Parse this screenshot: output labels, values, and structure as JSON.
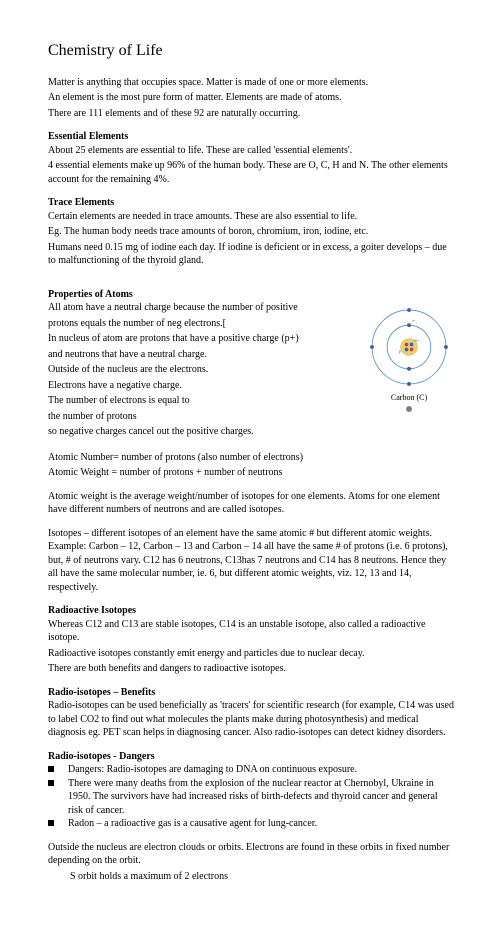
{
  "title": "Chemistry of Life",
  "intro": {
    "l1": "Matter is anything that occupies space. Matter is made of one or more elements.",
    "l2": "An element is the most pure form of matter. Elements are made of atoms.",
    "l3": "There are 111 elements and of these 92 are naturally occurring."
  },
  "essential": {
    "heading": "Essential Elements",
    "l1": "About 25 elements are essential to life. These are called 'essential elements'.",
    "l2": "4 essential elements make up 96% of the human body. These are O, C, H and N. The other elements account for the remaining 4%."
  },
  "trace": {
    "heading": "Trace Elements",
    "l1": "Certain elements are needed in trace amounts. These are also essential to life.",
    "l2": "Eg. The human body needs trace amounts of boron, chromium, iron, iodine, etc.",
    "l3": "Humans need 0.15 mg of iodine each day. If iodine is deficient or in excess, a goiter develops – due to malfunctioning of the thyroid gland."
  },
  "atoms": {
    "heading": "Properties of Atoms",
    "l1": "All atom have a neutral charge because the number of positive",
    "l2": "protons equals the number of neg electrons.[",
    "l3": "In nucleus of atom are protons that have a positive charge (p+)",
    "l4": "and neutrons that have a neutral charge.",
    "l5": "Outside of the nucleus are the electrons.",
    "l6": "Electrons have a negative charge.",
    "l7": "The number of electrons is equal to",
    "l8": "the number of protons",
    "l9": "so negative charges cancel out the positive charges.",
    "num_weight_l1": "Atomic Number= number of protons (also number of electrons)",
    "num_weight_l2": "Atomic Weight = number of protons + number of neutrons",
    "iso_intro": "Atomic weight is the average weight/number of isotopes for one elements. Atoms for one element have different numbers of neutrons and are called isotopes.",
    "iso_para": "Isotopes – different isotopes of an element have the same atomic # but different atomic weights. Example: Carbon – 12, Carbon – 13 and Carbon – 14 all have the same # of protons (i.e. 6 protons), but, # of neutrons vary. C12 has 6 neutrons, C13has 7 neutrons and C14 has 8 neutrons. Hence they all have the same molecular number, ie. 6, but different atomic weights, viz. 12, 13 and 14, respectively.",
    "figure_caption": "Carbon (C)"
  },
  "radioactive": {
    "heading": "Radioactive Isotopes",
    "l1": "Whereas C12 and C13 are stable isotopes, C14 is an unstable isotope, also called a radioactive isotope.",
    "l2": "Radioactive isotopes constantly emit energy and particles due to nuclear decay.",
    "l3": "There are both benefits and dangers to radioactive isotopes."
  },
  "benefits": {
    "heading": "Radio-isotopes – Benefits",
    "p": "Radio-isotopes can be used beneficially as 'tracers' for scientific research (for example, C14 was used to label CO2 to find out what molecules the plants make during photosynthesis) and medical diagnosis eg. PET scan helps in diagnosing cancer. Also radio-isotopes can detect kidney disorders."
  },
  "dangers": {
    "heading": "Radio-isotopes - Dangers",
    "b1": "Dangers: Radio-isotopes are damaging to DNA on continuous exposure.",
    "b2": "There were many deaths from the explosion of the nuclear reactor at Chernobyl, Ukraine in 1950. The survivors have had increased risks of birth-defects and thyroid cancer and general risk of cancer.",
    "b3": "Radon – a radioactive gas is a causative agent for lung-cancer."
  },
  "orbits": {
    "l1": "Outside the nucleus are electron clouds or orbits. Electrons are found in these orbits in fixed number depending on the orbit.",
    "l2": "S orbit holds a maximum of    2 electrons"
  },
  "atom_svg": {
    "colors": {
      "orbit": "#5a8fc4",
      "nucleus_fill": "#e8d070",
      "nucleus_stroke": "#c0a030",
      "proton": "#d04040",
      "neutron": "#4060c0",
      "electron": "#3a5fa0",
      "label": "#606060"
    },
    "size": 84
  }
}
